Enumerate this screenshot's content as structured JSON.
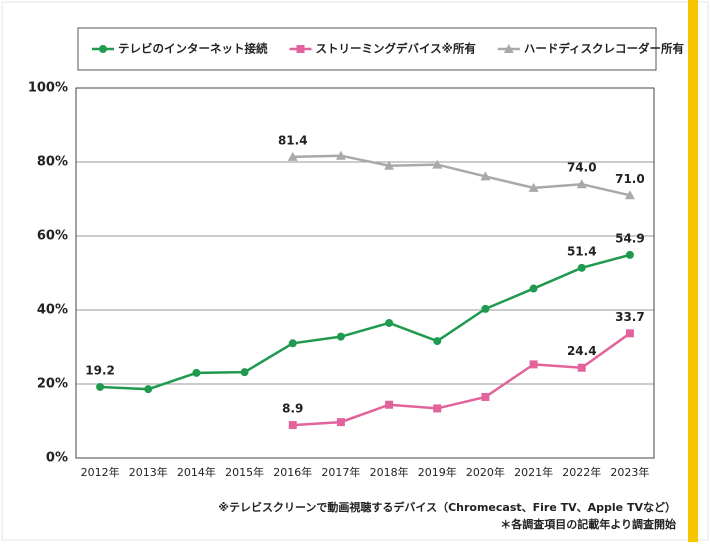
{
  "chart_data": {
    "type": "line",
    "categories": [
      "2012年",
      "2013年",
      "2014年",
      "2015年",
      "2016年",
      "2017年",
      "2018年",
      "2019年",
      "2020年",
      "2021年",
      "2022年",
      "2023年"
    ],
    "series": [
      {
        "name": "テレビのインターネット接続",
        "color": "#1f9a4e",
        "marker": "circle",
        "values": [
          19.2,
          18.6,
          23.0,
          23.2,
          31.0,
          32.8,
          36.5,
          31.6,
          40.3,
          45.8,
          51.4,
          54.9
        ],
        "value_labels": [
          "19.2",
          null,
          null,
          null,
          null,
          null,
          null,
          null,
          null,
          null,
          "51.4",
          "54.9"
        ]
      },
      {
        "name": "ストリーミングデバイス※所有",
        "color": "#e2639b",
        "marker": "square",
        "values": [
          null,
          null,
          null,
          null,
          8.9,
          9.7,
          14.4,
          13.4,
          16.5,
          25.3,
          24.4,
          33.7
        ],
        "value_labels": [
          null,
          null,
          null,
          null,
          "8.9",
          null,
          null,
          null,
          null,
          null,
          "24.4",
          "33.7"
        ]
      },
      {
        "name": "ハードディスクレコーダー所有",
        "color": "#a9a9a9",
        "marker": "triangle",
        "values": [
          null,
          null,
          null,
          null,
          81.4,
          81.7,
          79.0,
          79.3,
          76.1,
          73.0,
          74.0,
          71.0
        ],
        "value_labels": [
          null,
          null,
          null,
          null,
          "81.4",
          null,
          null,
          null,
          null,
          null,
          "74.0",
          "71.0"
        ]
      }
    ],
    "ylim": [
      0,
      100
    ],
    "yticks": [
      {
        "value": 0,
        "label": "0%"
      },
      {
        "value": 20,
        "label": "20%"
      },
      {
        "value": 40,
        "label": "40%"
      },
      {
        "value": 60,
        "label": "60%"
      },
      {
        "value": 80,
        "label": "80%"
      },
      {
        "value": 100,
        "label": "100%"
      }
    ],
    "grid": true,
    "legend": "top",
    "notes": [
      "※テレビスクリーンで動画視聴するデバイス（Chromecast、Fire TV、Apple TVなど）",
      "＊各調査項目の記載年より調査開始"
    ]
  }
}
